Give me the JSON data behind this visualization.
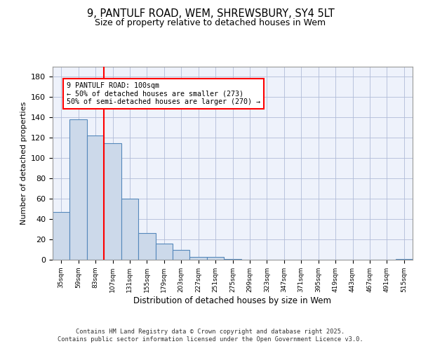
{
  "title1": "9, PANTULF ROAD, WEM, SHREWSBURY, SY4 5LT",
  "title2": "Size of property relative to detached houses in Wem",
  "xlabel": "Distribution of detached houses by size in Wem",
  "ylabel": "Number of detached properties",
  "categories": [
    "35sqm",
    "59sqm",
    "83sqm",
    "107sqm",
    "131sqm",
    "155sqm",
    "179sqm",
    "203sqm",
    "227sqm",
    "251sqm",
    "275sqm",
    "299sqm",
    "323sqm",
    "347sqm",
    "371sqm",
    "395sqm",
    "419sqm",
    "443sqm",
    "467sqm",
    "491sqm",
    "515sqm"
  ],
  "values": [
    47,
    138,
    122,
    115,
    60,
    26,
    16,
    10,
    3,
    3,
    1,
    0,
    0,
    0,
    0,
    0,
    0,
    0,
    0,
    0,
    1
  ],
  "bar_color": "#ccd9ea",
  "bar_edge_color": "#5588bb",
  "red_line_index": 3,
  "annotation_text": "9 PANTULF ROAD: 100sqm\n← 50% of detached houses are smaller (273)\n50% of semi-detached houses are larger (270) →",
  "footer_text": "Contains HM Land Registry data © Crown copyright and database right 2025.\nContains public sector information licensed under the Open Government Licence v3.0.",
  "ylim": [
    0,
    190
  ],
  "yticks": [
    0,
    20,
    40,
    60,
    80,
    100,
    120,
    140,
    160,
    180
  ],
  "background_color": "#eef2fb",
  "grid_color": "#b0bcd8",
  "title_fontsize": 10.5,
  "subtitle_fontsize": 9
}
